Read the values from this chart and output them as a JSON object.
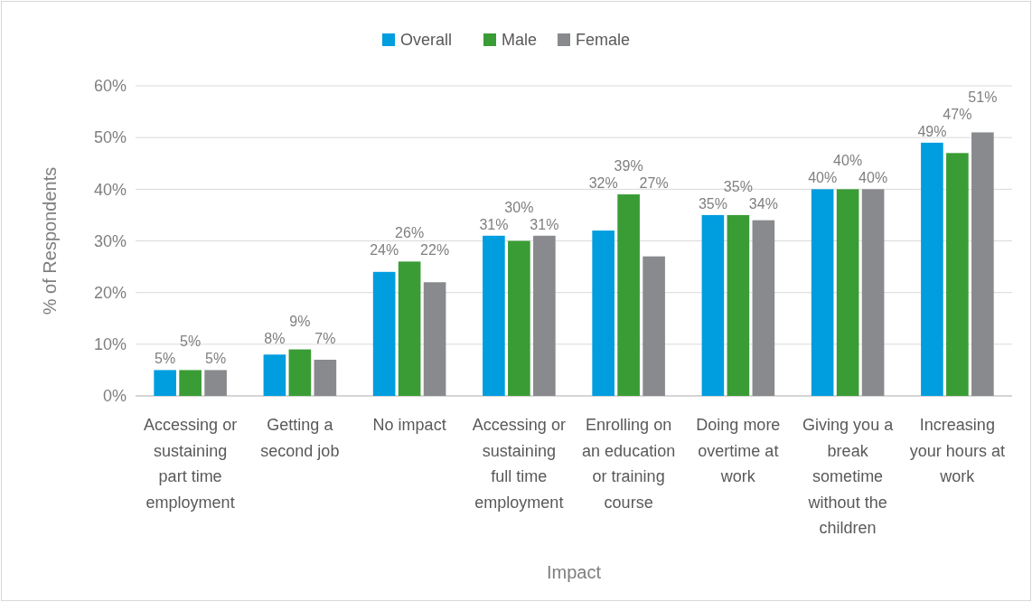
{
  "chart_data": {
    "type": "bar",
    "xlabel": "Impact",
    "ylabel": "% of Respondents",
    "categories": [
      "Accessing or sustaining part time employment",
      "Getting a second job",
      "No impact",
      "Accessing or sustaining full time employment",
      "Enrolling on an education or training course",
      "Doing more overtime at work",
      "Giving you a break sometime without the children",
      "Increasing your hours at work"
    ],
    "series": [
      {
        "name": "Overall",
        "color": "#009ddf",
        "values": [
          5,
          8,
          24,
          31,
          32,
          35,
          40,
          49
        ]
      },
      {
        "name": "Male",
        "color": "#3a9c35",
        "values": [
          5,
          9,
          26,
          30,
          39,
          35,
          40,
          47
        ]
      },
      {
        "name": "Female",
        "color": "#898a8d",
        "values": [
          5,
          7,
          22,
          31,
          27,
          34,
          40,
          51
        ]
      }
    ],
    "ylim": [
      0,
      60
    ],
    "yticks": [
      {
        "value": 0,
        "label": "0%"
      },
      {
        "value": 10,
        "label": "10%"
      },
      {
        "value": 20,
        "label": "20%"
      },
      {
        "value": 30,
        "label": "30%"
      },
      {
        "value": 40,
        "label": "40%"
      },
      {
        "value": 50,
        "label": "50%"
      },
      {
        "value": 60,
        "label": "60%"
      }
    ],
    "grid": "y",
    "legend": "top",
    "value_labels": [
      [
        "5%",
        "8%",
        "24%",
        "31%",
        "32%",
        "35%",
        "40%",
        "49%"
      ],
      [
        "5%",
        "9%",
        "26%",
        "30%",
        "39%",
        "35%",
        "40%",
        "47%"
      ],
      [
        "5%",
        "7%",
        "22%",
        "31%",
        "27%",
        "34%",
        "40%",
        "51%"
      ]
    ]
  }
}
